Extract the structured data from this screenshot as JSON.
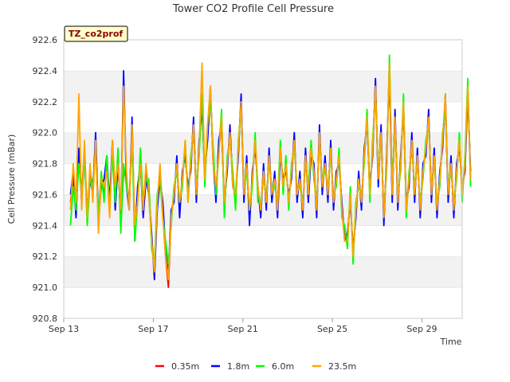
{
  "chart_data": {
    "type": "line",
    "title": "Tower CO2 Profile Cell Pressure",
    "xlabel": "Time",
    "ylabel": "Cell Pressure (mBar)",
    "tag": "TZ_co2prof",
    "xlim": [
      0,
      17.8
    ],
    "ylim": [
      920.8,
      922.6
    ],
    "x_ticks": [
      {
        "label": "Sep 13",
        "day": 0
      },
      {
        "label": "Sep 17",
        "day": 4
      },
      {
        "label": "Sep 21",
        "day": 8
      },
      {
        "label": "Sep 25",
        "day": 12
      },
      {
        "label": "Sep 29",
        "day": 16
      }
    ],
    "y_ticks": [
      "920.8",
      "921.0",
      "921.2",
      "921.4",
      "921.6",
      "921.8",
      "922.0",
      "922.2",
      "922.4",
      "922.6"
    ],
    "grid": "alternating horizontal bands",
    "legend_position": "bottom",
    "series": [
      {
        "name": "0.35m",
        "color": "#ff0000",
        "x_start": 0.3,
        "x_end": 17.5,
        "step": 0.125,
        "values": [
          921.55,
          921.7,
          921.5,
          921.85,
          921.6,
          921.9,
          921.45,
          921.75,
          921.65,
          921.95,
          921.4,
          921.7,
          921.6,
          921.8,
          921.5,
          921.9,
          921.6,
          921.85,
          921.4,
          921.75,
          921.7,
          921.55,
          922.0,
          921.35,
          921.6,
          921.85,
          921.5,
          921.75,
          921.65,
          921.3,
          921.1,
          921.55,
          921.75,
          921.5,
          921.2,
          921.0,
          921.45,
          921.6,
          921.8,
          921.5,
          921.7,
          921.9,
          921.6,
          921.8,
          922.05,
          921.6,
          921.9,
          922.2,
          921.7,
          922.0,
          922.3,
          921.8,
          921.6,
          921.9,
          922.1,
          921.5,
          921.8,
          922.0,
          921.7,
          921.55,
          921.9,
          922.2,
          921.6,
          921.8,
          921.45,
          921.7,
          921.95,
          921.6,
          921.5,
          921.75,
          921.55,
          921.85,
          921.6,
          921.7,
          921.5,
          921.9,
          921.65,
          921.8,
          921.55,
          921.75,
          921.95,
          921.6,
          921.7,
          921.5,
          921.85,
          921.6,
          921.9,
          921.75,
          921.5,
          922.0,
          921.65,
          921.8,
          921.6,
          921.9,
          921.55,
          921.7,
          921.85,
          921.5,
          921.35,
          921.3,
          921.6,
          921.2,
          921.5,
          921.7,
          921.55,
          921.85,
          922.1,
          921.6,
          921.9,
          922.3,
          921.7,
          922.0,
          921.45,
          921.8,
          922.45,
          921.6,
          922.1,
          921.55,
          921.8,
          922.2,
          921.5,
          921.7,
          921.95,
          921.6,
          921.85,
          921.5,
          921.75,
          921.9,
          922.1,
          921.6,
          921.85,
          921.5,
          921.7,
          921.95,
          922.2,
          921.6,
          921.8,
          921.5,
          921.75,
          921.95,
          921.6,
          921.8,
          922.3,
          921.7
        ]
      },
      {
        "name": "1.8m",
        "color": "#0000ff",
        "x_start": 0.3,
        "x_end": 17.5,
        "step": 0.125,
        "values": [
          921.6,
          921.75,
          921.45,
          921.9,
          921.55,
          921.85,
          921.5,
          921.7,
          921.6,
          922.0,
          921.45,
          921.65,
          921.7,
          921.85,
          921.55,
          921.95,
          921.5,
          921.8,
          921.45,
          922.4,
          921.65,
          921.5,
          922.1,
          921.3,
          921.65,
          921.8,
          921.45,
          921.7,
          921.6,
          921.35,
          921.05,
          921.5,
          921.7,
          921.55,
          921.25,
          921.1,
          921.5,
          921.55,
          921.85,
          921.45,
          921.75,
          921.85,
          921.65,
          921.75,
          922.1,
          921.55,
          921.95,
          922.15,
          921.75,
          921.95,
          922.25,
          921.85,
          921.55,
          921.95,
          922.05,
          921.55,
          921.75,
          922.05,
          921.65,
          921.6,
          921.85,
          922.25,
          921.55,
          921.85,
          921.4,
          921.75,
          921.9,
          921.65,
          921.45,
          921.8,
          921.5,
          921.9,
          921.55,
          921.75,
          921.45,
          921.85,
          921.7,
          921.75,
          921.6,
          921.7,
          922.0,
          921.55,
          921.75,
          921.45,
          921.9,
          921.55,
          921.85,
          921.8,
          921.45,
          922.05,
          921.6,
          921.85,
          921.55,
          921.95,
          921.5,
          921.75,
          921.8,
          921.55,
          921.3,
          921.35,
          921.55,
          921.25,
          921.45,
          921.75,
          921.5,
          921.9,
          922.05,
          921.65,
          921.85,
          922.35,
          921.65,
          922.05,
          921.4,
          921.85,
          922.4,
          921.55,
          922.15,
          921.5,
          921.85,
          922.15,
          921.55,
          921.65,
          922.0,
          921.55,
          921.9,
          921.45,
          921.8,
          921.85,
          922.15,
          921.55,
          921.9,
          921.45,
          921.75,
          921.9,
          922.25,
          921.55,
          921.85,
          921.45,
          921.8,
          921.9,
          921.65,
          921.75,
          922.25,
          921.75
        ]
      },
      {
        "name": "6.0m",
        "color": "#00ff00",
        "x_start": 0.3,
        "x_end": 17.5,
        "step": 0.125,
        "values": [
          921.4,
          921.65,
          921.5,
          921.8,
          921.6,
          921.85,
          921.4,
          921.7,
          921.65,
          921.9,
          921.45,
          921.75,
          921.55,
          921.85,
          921.5,
          921.85,
          921.55,
          921.9,
          921.35,
          921.8,
          921.65,
          921.55,
          921.95,
          921.3,
          921.55,
          921.9,
          921.55,
          921.7,
          921.7,
          921.25,
          921.15,
          921.6,
          921.7,
          921.45,
          921.3,
          921.15,
          921.4,
          921.65,
          921.75,
          921.55,
          921.65,
          921.95,
          921.55,
          921.85,
          922.0,
          921.65,
          921.85,
          922.25,
          921.65,
          922.05,
          922.2,
          921.9,
          921.6,
          921.85,
          922.15,
          921.45,
          921.85,
          921.95,
          921.75,
          921.5,
          921.95,
          922.15,
          921.65,
          921.75,
          921.5,
          921.65,
          922.0,
          921.55,
          921.55,
          921.7,
          921.6,
          921.8,
          921.65,
          921.65,
          921.55,
          921.95,
          921.6,
          921.85,
          921.5,
          921.8,
          921.9,
          921.65,
          921.65,
          921.55,
          921.8,
          921.65,
          921.95,
          921.7,
          921.55,
          921.95,
          921.7,
          921.75,
          921.65,
          921.85,
          921.6,
          921.65,
          921.9,
          921.45,
          921.4,
          921.25,
          921.65,
          921.15,
          921.55,
          921.65,
          921.6,
          921.8,
          922.15,
          921.55,
          921.95,
          922.25,
          921.75,
          921.95,
          921.5,
          921.75,
          922.5,
          921.65,
          922.05,
          921.6,
          921.75,
          922.25,
          921.45,
          921.75,
          921.9,
          921.65,
          921.8,
          921.55,
          921.7,
          921.95,
          922.05,
          921.65,
          921.8,
          921.55,
          921.65,
          922.0,
          922.15,
          921.65,
          921.75,
          921.55,
          921.7,
          922.0,
          921.55,
          921.85,
          922.35,
          921.65
        ]
      },
      {
        "name": "23.5m",
        "color": "#ffa500",
        "x_start": 0.3,
        "x_end": 17.5,
        "step": 0.125,
        "values": [
          921.5,
          921.8,
          921.55,
          922.25,
          921.5,
          921.95,
          921.45,
          921.8,
          921.55,
          921.95,
          921.35,
          921.7,
          921.65,
          921.75,
          921.45,
          921.95,
          921.65,
          921.8,
          921.5,
          922.3,
          921.75,
          921.5,
          922.05,
          921.4,
          921.55,
          921.8,
          921.5,
          921.8,
          921.6,
          921.3,
          921.1,
          921.55,
          921.8,
          921.45,
          921.2,
          921.05,
          921.45,
          921.6,
          921.8,
          921.55,
          921.7,
          921.95,
          921.55,
          921.8,
          922.05,
          921.6,
          921.9,
          922.45,
          921.7,
          922.05,
          922.3,
          921.8,
          921.65,
          921.85,
          922.1,
          921.55,
          921.8,
          922.0,
          921.65,
          921.6,
          921.9,
          922.2,
          921.6,
          921.8,
          921.5,
          921.7,
          921.95,
          921.65,
          921.5,
          921.75,
          921.55,
          921.85,
          921.6,
          921.7,
          921.5,
          921.9,
          921.65,
          921.8,
          921.55,
          921.75,
          921.95,
          921.6,
          921.7,
          921.5,
          921.85,
          921.6,
          921.9,
          921.75,
          921.5,
          922.0,
          921.65,
          921.8,
          921.6,
          921.9,
          921.55,
          921.7,
          921.85,
          921.5,
          921.3,
          921.3,
          921.6,
          921.2,
          921.5,
          921.7,
          921.55,
          921.85,
          922.1,
          921.6,
          921.9,
          922.3,
          921.7,
          922.0,
          921.45,
          921.8,
          922.45,
          921.6,
          922.1,
          921.55,
          921.8,
          922.2,
          921.5,
          921.7,
          921.95,
          921.6,
          921.85,
          921.5,
          921.75,
          921.9,
          922.1,
          921.6,
          921.85,
          921.5,
          921.7,
          921.95,
          922.25,
          921.6,
          921.8,
          921.5,
          921.75,
          921.95,
          921.6,
          921.8,
          922.3,
          921.7
        ]
      }
    ]
  }
}
